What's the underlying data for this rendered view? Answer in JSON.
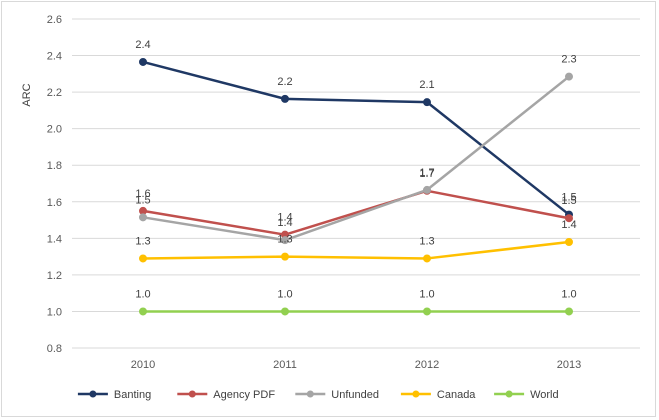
{
  "chart_data": {
    "type": "line",
    "title": "",
    "xlabel": "",
    "ylabel": "ARC",
    "categories": [
      "2010",
      "2011",
      "2012",
      "2013"
    ],
    "ylim": [
      0.8,
      2.6
    ],
    "yticks": [
      "0.8",
      "1.0",
      "1.2",
      "1.4",
      "1.6",
      "1.8",
      "2.0",
      "2.2",
      "2.4",
      "2.6"
    ],
    "grid": true,
    "legend_position": "bottom",
    "series": [
      {
        "name": "Banting",
        "color": "#1f3864",
        "values": [
          2.365,
          2.163,
          2.145,
          1.53
        ],
        "labels": [
          "2.4",
          "2.2",
          "2.1",
          "1.5"
        ]
      },
      {
        "name": "Agency PDF",
        "color": "#c0504d",
        "values": [
          1.55,
          1.42,
          1.66,
          1.51
        ],
        "labels": [
          "1.6",
          "1.4",
          "1.7",
          "1.5"
        ]
      },
      {
        "name": "Unfunded",
        "color": "#a5a5a5",
        "values": [
          1.515,
          1.39,
          1.665,
          2.285
        ],
        "labels": [
          "1.5",
          "1.4",
          "1.7",
          "2.3"
        ]
      },
      {
        "name": "Canada",
        "color": "#ffc000",
        "values": [
          1.29,
          1.3,
          1.29,
          1.38
        ],
        "labels": [
          "1.3",
          "1.3",
          "1.3",
          "1.4"
        ]
      },
      {
        "name": "World",
        "color": "#92d050",
        "values": [
          1.0,
          1.0,
          1.0,
          1.0
        ],
        "labels": [
          "1.0",
          "1.0",
          "1.0",
          "1.0"
        ]
      }
    ]
  }
}
